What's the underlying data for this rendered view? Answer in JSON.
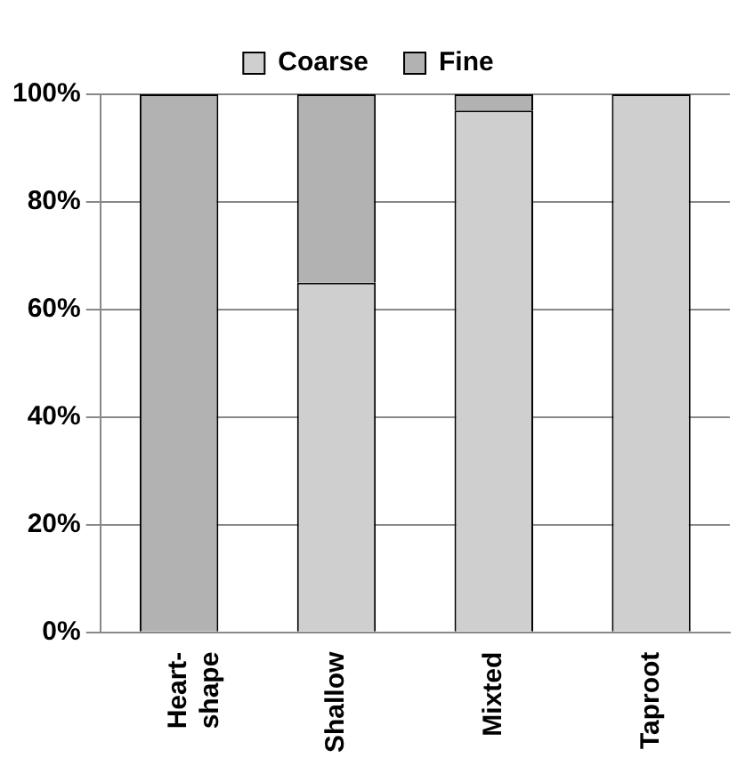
{
  "chart_data": {
    "type": "bar",
    "stacked": true,
    "categories": [
      "Heart-shape",
      "Shallow",
      "Mixted",
      "Taproot"
    ],
    "series": [
      {
        "name": "Coarse",
        "color": "#cfcfcf",
        "values": [
          0,
          65,
          97,
          100
        ]
      },
      {
        "name": "Fine",
        "color": "#b2b2b2",
        "values": [
          100,
          35,
          3,
          0
        ]
      }
    ],
    "ylim": [
      0,
      100
    ],
    "yticks": [
      {
        "value": 0,
        "label": "0%"
      },
      {
        "value": 20,
        "label": "20%"
      },
      {
        "value": 40,
        "label": "40%"
      },
      {
        "value": 60,
        "label": "60%"
      },
      {
        "value": 80,
        "label": "80%"
      },
      {
        "value": 100,
        "label": "100%"
      }
    ],
    "grid": "y",
    "legend": "top"
  }
}
